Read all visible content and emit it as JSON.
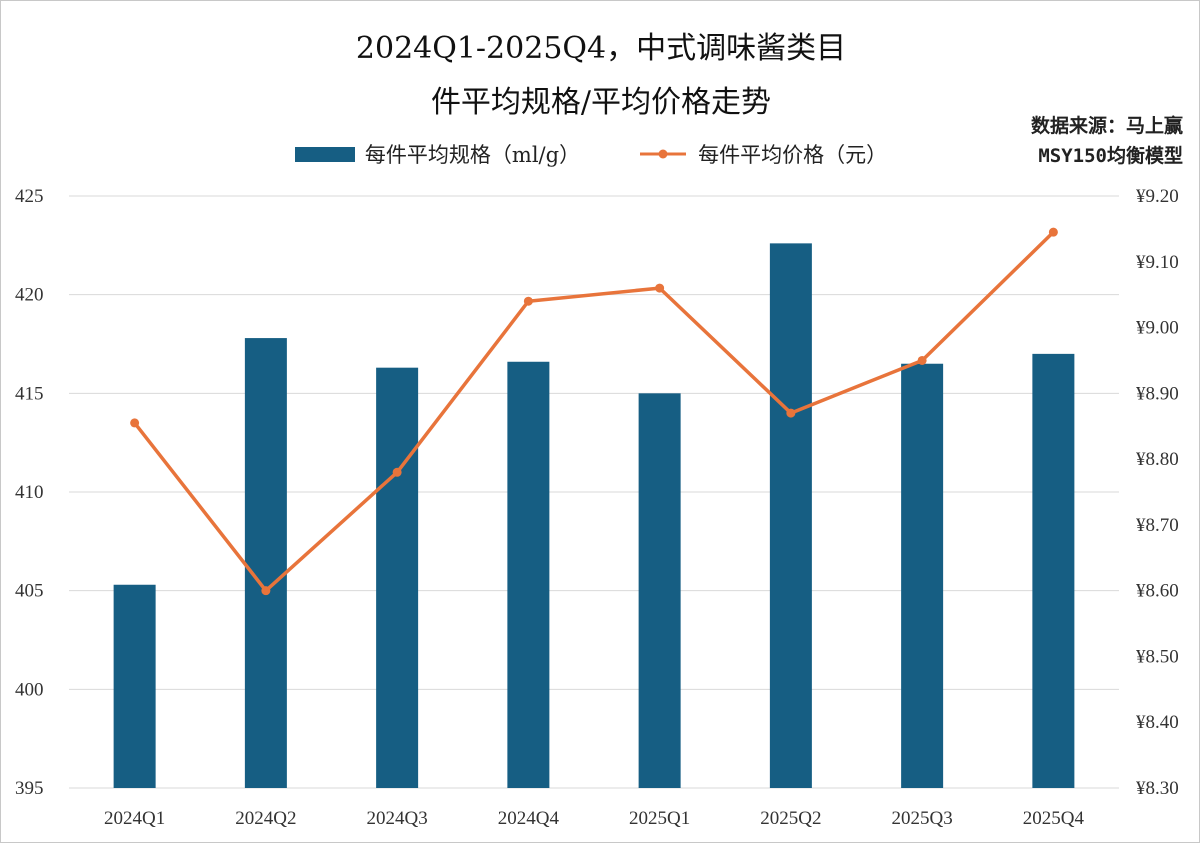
{
  "chart_data": {
    "type": "bar+line",
    "title_line1": "2024Q1-2025Q4，中式调味酱类目",
    "title_line2": "件平均规格/平均价格走势",
    "source_line1": "数据来源：马上赢",
    "source_line2": "MSY150均衡模型",
    "categories": [
      "2024Q1",
      "2024Q2",
      "2024Q3",
      "2024Q4",
      "2025Q1",
      "2025Q2",
      "2025Q3",
      "2025Q4"
    ],
    "series": [
      {
        "name": "每件平均规格（ml/g）",
        "type": "bar",
        "axis": "left",
        "color": "#165e83",
        "values": [
          405.3,
          417.8,
          416.3,
          416.6,
          415.0,
          422.6,
          416.5,
          417.0
        ]
      },
      {
        "name": "每件平均价格（元）",
        "type": "line",
        "axis": "right",
        "color": "#e8743b",
        "values": [
          8.855,
          8.6,
          8.78,
          9.04,
          9.06,
          8.87,
          8.95,
          9.145
        ]
      }
    ],
    "y_left": {
      "min": 395,
      "max": 425,
      "step": 5,
      "ticks": [
        "395",
        "400",
        "405",
        "410",
        "415",
        "420",
        "425"
      ]
    },
    "y_right": {
      "min": 8.3,
      "max": 9.2,
      "step": 0.1,
      "ticks": [
        "¥8.30",
        "¥8.40",
        "¥8.50",
        "¥8.60",
        "¥8.70",
        "¥8.80",
        "¥8.90",
        "¥9.00",
        "¥9.10",
        "¥9.20"
      ]
    },
    "grid": true,
    "legend_position": "top"
  }
}
